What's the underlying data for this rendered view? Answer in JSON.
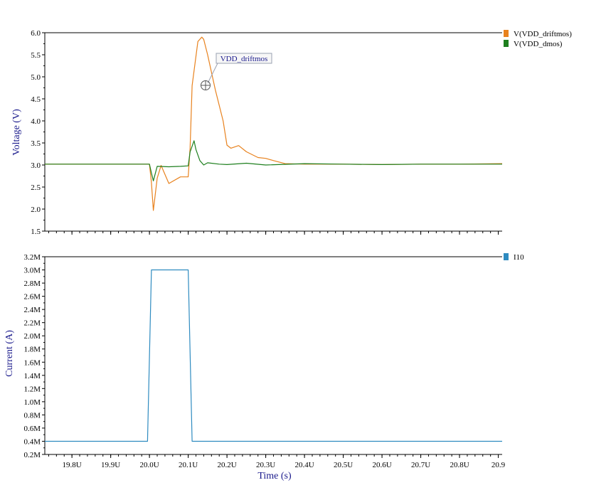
{
  "chart_data": [
    {
      "type": "line",
      "ylabel": "Voltage (V)",
      "ylim": [
        1.5,
        6.0
      ],
      "yticks": [
        1.5,
        2.0,
        2.5,
        3.0,
        3.5,
        4.0,
        4.5,
        5.0,
        5.5,
        6.0
      ],
      "ytick_labels": [
        "1.5",
        "2.0",
        "2.5",
        "3.0",
        "3.5",
        "4.0",
        "4.5",
        "5.0",
        "5.5",
        "6.0"
      ],
      "xlim": [
        19.73,
        20.91
      ],
      "grid": false,
      "legend_position": "right",
      "annotation": {
        "text": "VDD_driftmos",
        "x": 20.165,
        "y": 4.82
      },
      "series": [
        {
          "name": "V(VDD_driftmos)",
          "color": "#e8821e",
          "x": [
            19.73,
            20.0,
            20.005,
            20.01,
            20.02,
            20.03,
            20.05,
            20.08,
            20.1,
            20.105,
            20.11,
            20.125,
            20.135,
            20.14,
            20.15,
            20.17,
            20.19,
            20.2,
            20.21,
            20.23,
            20.25,
            20.28,
            20.3,
            20.32,
            20.35,
            20.4,
            20.5,
            20.6,
            20.7,
            20.8,
            20.91
          ],
          "y": [
            3.02,
            3.02,
            2.6,
            1.97,
            2.7,
            2.99,
            2.58,
            2.73,
            2.73,
            3.4,
            4.8,
            5.8,
            5.9,
            5.85,
            5.5,
            4.7,
            4.0,
            3.45,
            3.38,
            3.44,
            3.3,
            3.17,
            3.15,
            3.1,
            3.03,
            3.02,
            3.02,
            3.01,
            3.02,
            3.02,
            3.03
          ]
        },
        {
          "name": "V(VDD_dmos)",
          "color": "#1e7f1e",
          "x": [
            19.73,
            20.0,
            20.005,
            20.01,
            20.02,
            20.05,
            20.08,
            20.1,
            20.105,
            20.115,
            20.12,
            20.13,
            20.14,
            20.15,
            20.18,
            20.2,
            20.25,
            20.3,
            20.4,
            20.5,
            20.6,
            20.7,
            20.8,
            20.91
          ],
          "y": [
            3.02,
            3.02,
            2.82,
            2.64,
            2.97,
            2.96,
            2.97,
            2.98,
            3.3,
            3.55,
            3.35,
            3.1,
            3.0,
            3.05,
            3.02,
            3.01,
            3.04,
            3.0,
            3.03,
            3.02,
            3.01,
            3.02,
            3.02,
            3.02
          ]
        }
      ]
    },
    {
      "type": "line",
      "xlabel": "Time (s)",
      "ylabel": "Current (A)",
      "ylim": [
        0.2,
        3.2
      ],
      "yticks": [
        0.2,
        0.4,
        0.6,
        0.8,
        1.0,
        1.2,
        1.4,
        1.6,
        1.8,
        2.0,
        2.2,
        2.4,
        2.6,
        2.8,
        3.0,
        3.2
      ],
      "ytick_labels": [
        "0.2M",
        "0.4M",
        "0.6M",
        "0.8M",
        "1.0M",
        "1.2M",
        "1.4M",
        "1.6M",
        "1.8M",
        "2.0M",
        "2.2M",
        "2.4M",
        "2.6M",
        "2.8M",
        "3.0M",
        "3.2M"
      ],
      "xlim": [
        19.73,
        20.91
      ],
      "xticks": [
        19.8,
        19.9,
        20.0,
        20.1,
        20.2,
        20.3,
        20.4,
        20.5,
        20.6,
        20.7,
        20.8,
        20.9
      ],
      "xtick_labels": [
        "19.8U",
        "19.9U",
        "20.0U",
        "20.1U",
        "20.2U",
        "20.3U",
        "20.4U",
        "20.5U",
        "20.6U",
        "20.7U",
        "20.8U",
        "20.9"
      ],
      "grid": false,
      "legend_position": "right",
      "series": [
        {
          "name": "I10",
          "color": "#2e8bc0",
          "x": [
            19.73,
            19.995,
            20.005,
            20.1,
            20.11,
            20.91
          ],
          "y": [
            0.4,
            0.4,
            3.0,
            3.0,
            0.4,
            0.4
          ]
        }
      ]
    }
  ]
}
